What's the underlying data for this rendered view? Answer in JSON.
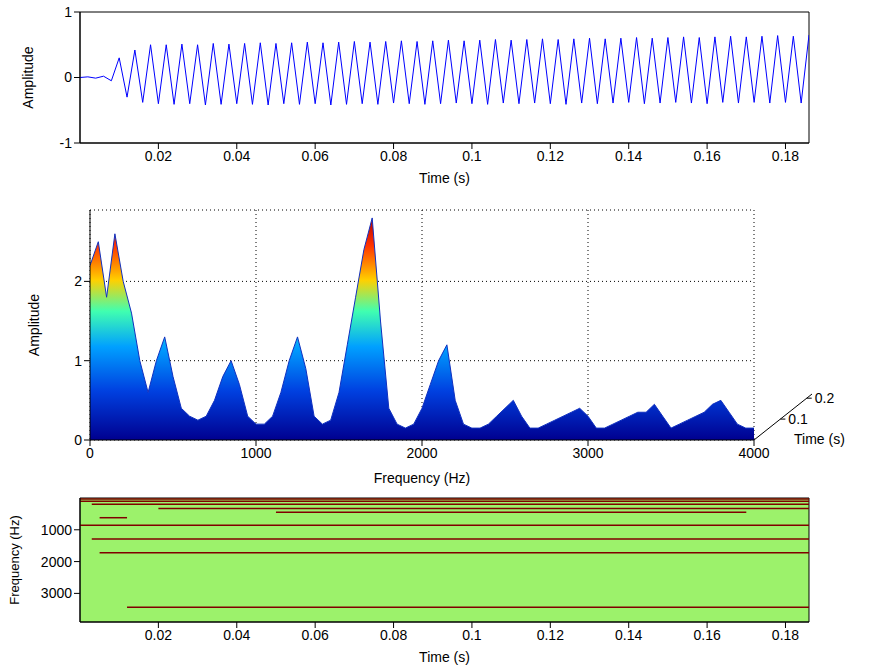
{
  "chart_data": [
    {
      "type": "line",
      "x_label": "Time (s)",
      "y_label": "Amplitude",
      "color": "#0000ff",
      "x": [
        0,
        0.002,
        0.004,
        0.006,
        0.008,
        0.01,
        0.012,
        0.014,
        0.016,
        0.018,
        0.02,
        0.022,
        0.024,
        0.026,
        0.028,
        0.03,
        0.032,
        0.034,
        0.036,
        0.038,
        0.04,
        0.042,
        0.044,
        0.046,
        0.048,
        0.05,
        0.052,
        0.054,
        0.056,
        0.058,
        0.06,
        0.062,
        0.064,
        0.066,
        0.068,
        0.07,
        0.072,
        0.074,
        0.076,
        0.078,
        0.08,
        0.082,
        0.084,
        0.086,
        0.088,
        0.09,
        0.092,
        0.094,
        0.096,
        0.098,
        0.1,
        0.102,
        0.104,
        0.106,
        0.108,
        0.11,
        0.112,
        0.114,
        0.116,
        0.118,
        0.12,
        0.122,
        0.124,
        0.126,
        0.128,
        0.13,
        0.132,
        0.134,
        0.136,
        0.138,
        0.14,
        0.142,
        0.144,
        0.146,
        0.148,
        0.15,
        0.152,
        0.154,
        0.156,
        0.158,
        0.16,
        0.162,
        0.164,
        0.166,
        0.168,
        0.17,
        0.172,
        0.174,
        0.176,
        0.178,
        0.18,
        0.182,
        0.184,
        0.186
      ],
      "values": [
        0,
        0.01,
        -0.01,
        0.02,
        -0.05,
        0.3,
        -0.3,
        0.42,
        -0.38,
        0.5,
        -0.4,
        0.5,
        -0.41,
        0.51,
        -0.4,
        0.5,
        -0.42,
        0.52,
        -0.41,
        0.51,
        -0.4,
        0.52,
        -0.41,
        0.53,
        -0.42,
        0.52,
        -0.4,
        0.53,
        -0.41,
        0.54,
        -0.4,
        0.53,
        -0.42,
        0.54,
        -0.41,
        0.55,
        -0.4,
        0.54,
        -0.41,
        0.55,
        -0.39,
        0.56,
        -0.4,
        0.55,
        -0.41,
        0.56,
        -0.4,
        0.57,
        -0.39,
        0.56,
        -0.4,
        0.57,
        -0.41,
        0.58,
        -0.39,
        0.57,
        -0.4,
        0.58,
        -0.39,
        0.59,
        -0.4,
        0.58,
        -0.41,
        0.59,
        -0.39,
        0.6,
        -0.4,
        0.59,
        -0.39,
        0.6,
        -0.38,
        0.61,
        -0.4,
        0.6,
        -0.39,
        0.61,
        -0.38,
        0.62,
        -0.39,
        0.61,
        -0.4,
        0.62,
        -0.38,
        0.63,
        -0.39,
        0.62,
        -0.38,
        0.63,
        -0.39,
        0.64,
        -0.38,
        0.63,
        -0.39,
        0.65
      ],
      "xlim": [
        0,
        0.186
      ],
      "xticks": [
        0.02,
        0.04,
        0.06,
        0.08,
        0.1,
        0.12,
        0.14,
        0.16,
        0.18
      ],
      "ylim": [
        -1,
        1
      ],
      "yticks": [
        -1,
        0,
        1
      ]
    },
    {
      "type": "area",
      "x_label": "Frequency (Hz)",
      "y_label": "Amplitude",
      "z_label": "Time (s)",
      "zlim": [
        0,
        0.22
      ],
      "zticks": [
        0.1,
        0.2
      ],
      "color": "#1030c0",
      "grid": true,
      "x": [
        0,
        50,
        100,
        150,
        200,
        250,
        300,
        350,
        400,
        450,
        500,
        550,
        600,
        650,
        700,
        750,
        800,
        850,
        900,
        950,
        1000,
        1050,
        1100,
        1150,
        1200,
        1250,
        1300,
        1350,
        1400,
        1450,
        1500,
        1550,
        1600,
        1650,
        1700,
        1750,
        1800,
        1850,
        1900,
        1950,
        2000,
        2050,
        2100,
        2150,
        2200,
        2250,
        2300,
        2350,
        2400,
        2450,
        2500,
        2550,
        2600,
        2650,
        2700,
        2750,
        2800,
        2850,
        2900,
        2950,
        3000,
        3050,
        3100,
        3150,
        3200,
        3250,
        3300,
        3350,
        3400,
        3450,
        3500,
        3550,
        3600,
        3650,
        3700,
        3750,
        3800,
        3850,
        3900,
        3950,
        4000
      ],
      "values": [
        2.2,
        2.5,
        1.8,
        2.6,
        2.0,
        1.6,
        1.0,
        0.6,
        1.0,
        1.3,
        0.8,
        0.4,
        0.3,
        0.25,
        0.3,
        0.5,
        0.8,
        1.0,
        0.7,
        0.3,
        0.2,
        0.2,
        0.3,
        0.6,
        1.0,
        1.3,
        0.9,
        0.3,
        0.2,
        0.25,
        0.6,
        1.2,
        1.8,
        2.4,
        2.8,
        1.5,
        0.4,
        0.2,
        0.15,
        0.2,
        0.4,
        0.7,
        1.0,
        1.2,
        0.5,
        0.2,
        0.15,
        0.15,
        0.2,
        0.3,
        0.4,
        0.5,
        0.3,
        0.15,
        0.15,
        0.2,
        0.25,
        0.3,
        0.35,
        0.4,
        0.3,
        0.15,
        0.15,
        0.2,
        0.25,
        0.3,
        0.35,
        0.35,
        0.45,
        0.3,
        0.15,
        0.2,
        0.25,
        0.3,
        0.35,
        0.45,
        0.5,
        0.35,
        0.2,
        0.15,
        0.15
      ],
      "xlim": [
        0,
        4000
      ],
      "xticks": [
        0,
        1000,
        2000,
        3000,
        4000
      ],
      "ylim": [
        0,
        2.9
      ],
      "yticks": [
        0,
        1,
        2
      ]
    },
    {
      "type": "line",
      "x_label": "Time (s)",
      "y_label": "Frequency (Hz)",
      "series": [
        {
          "color": "#800000",
          "x": [
            0,
            0.186
          ],
          "values": [
            30,
            30
          ]
        },
        {
          "color": "#800000",
          "x": [
            0,
            0.186
          ],
          "values": [
            100,
            100
          ]
        },
        {
          "color": "#800000",
          "x": [
            0.003,
            0.186
          ],
          "values": [
            200,
            200
          ]
        },
        {
          "color": "#800000",
          "x": [
            0.02,
            0.186
          ],
          "values": [
            330,
            330
          ]
        },
        {
          "color": "#800000",
          "x": [
            0.05,
            0.17
          ],
          "values": [
            450,
            450
          ]
        },
        {
          "color": "#800000",
          "x": [
            0.005,
            0.012
          ],
          "values": [
            620,
            620
          ]
        },
        {
          "color": "#800000",
          "x": [
            0,
            0.186
          ],
          "values": [
            860,
            860
          ]
        },
        {
          "color": "#800000",
          "x": [
            0.003,
            0.186
          ],
          "values": [
            1290,
            1290
          ]
        },
        {
          "color": "#800000",
          "x": [
            0.005,
            0.186
          ],
          "values": [
            1720,
            1720
          ]
        },
        {
          "color": "#800000",
          "x": [
            0.012,
            0.186
          ],
          "values": [
            3440,
            3440
          ]
        }
      ],
      "xlim": [
        0,
        0.186
      ],
      "xticks": [
        0.02,
        0.04,
        0.06,
        0.08,
        0.1,
        0.12,
        0.14,
        0.16,
        0.18
      ],
      "ylim": [
        0,
        3900
      ],
      "yticks": [
        1000,
        2000,
        3000
      ]
    }
  ]
}
